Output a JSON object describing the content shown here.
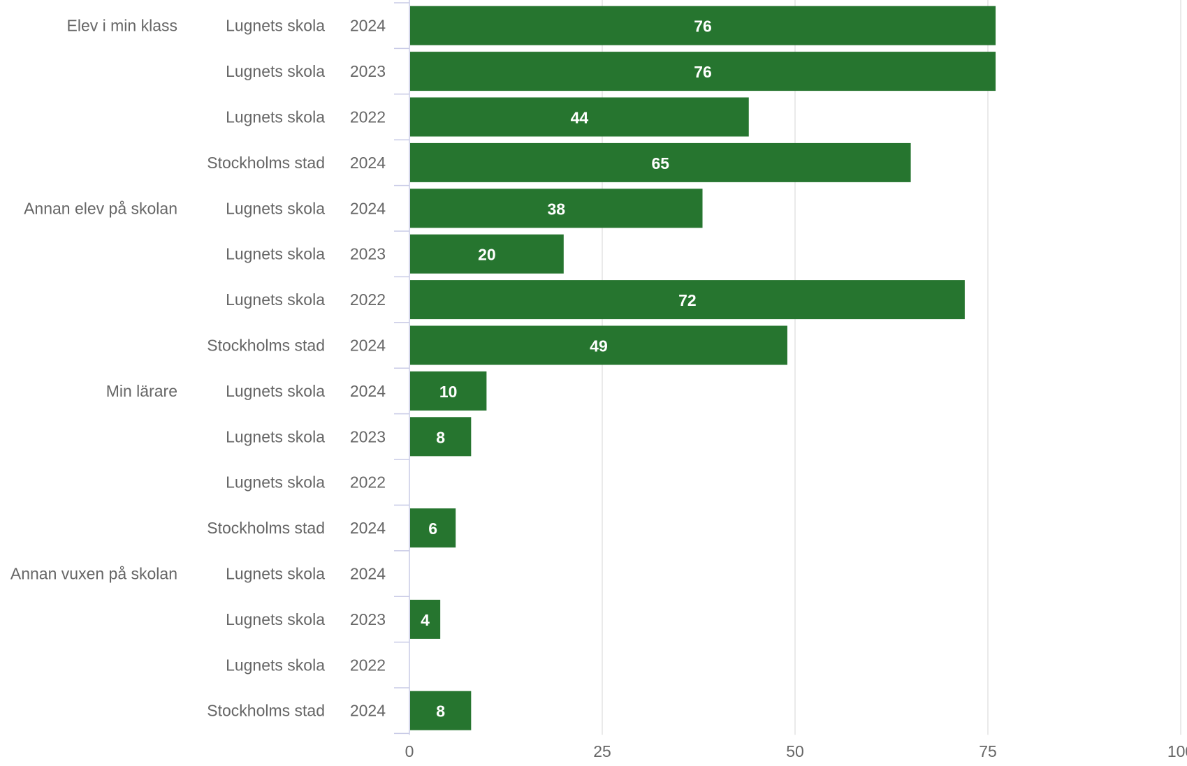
{
  "chart_data": {
    "type": "bar",
    "orientation": "horizontal",
    "xlim": [
      0,
      100
    ],
    "x_ticks": [
      "0",
      "25",
      "50",
      "75",
      "100"
    ],
    "grid": true,
    "bar_color": "#26752f",
    "label_color": "#666666",
    "groups": [
      {
        "name": "Elev i min klass",
        "rows": [
          {
            "entity": "Lugnets skola",
            "year": "2024",
            "value": 76
          },
          {
            "entity": "Lugnets skola",
            "year": "2023",
            "value": 76
          },
          {
            "entity": "Lugnets skola",
            "year": "2022",
            "value": 44
          },
          {
            "entity": "Stockholms stad",
            "year": "2024",
            "value": 65
          }
        ]
      },
      {
        "name": "Annan elev på skolan",
        "rows": [
          {
            "entity": "Lugnets skola",
            "year": "2024",
            "value": 38
          },
          {
            "entity": "Lugnets skola",
            "year": "2023",
            "value": 20
          },
          {
            "entity": "Lugnets skola",
            "year": "2022",
            "value": 72
          },
          {
            "entity": "Stockholms stad",
            "year": "2024",
            "value": 49
          }
        ]
      },
      {
        "name": "Min lärare",
        "rows": [
          {
            "entity": "Lugnets skola",
            "year": "2024",
            "value": 10
          },
          {
            "entity": "Lugnets skola",
            "year": "2023",
            "value": 8
          },
          {
            "entity": "Lugnets skola",
            "year": "2022",
            "value": null
          },
          {
            "entity": "Stockholms stad",
            "year": "2024",
            "value": 6
          }
        ]
      },
      {
        "name": "Annan vuxen på skolan",
        "rows": [
          {
            "entity": "Lugnets skola",
            "year": "2024",
            "value": null
          },
          {
            "entity": "Lugnets skola",
            "year": "2023",
            "value": 4
          },
          {
            "entity": "Lugnets skola",
            "year": "2022",
            "value": null
          },
          {
            "entity": "Stockholms stad",
            "year": "2024",
            "value": 8
          }
        ]
      }
    ]
  }
}
